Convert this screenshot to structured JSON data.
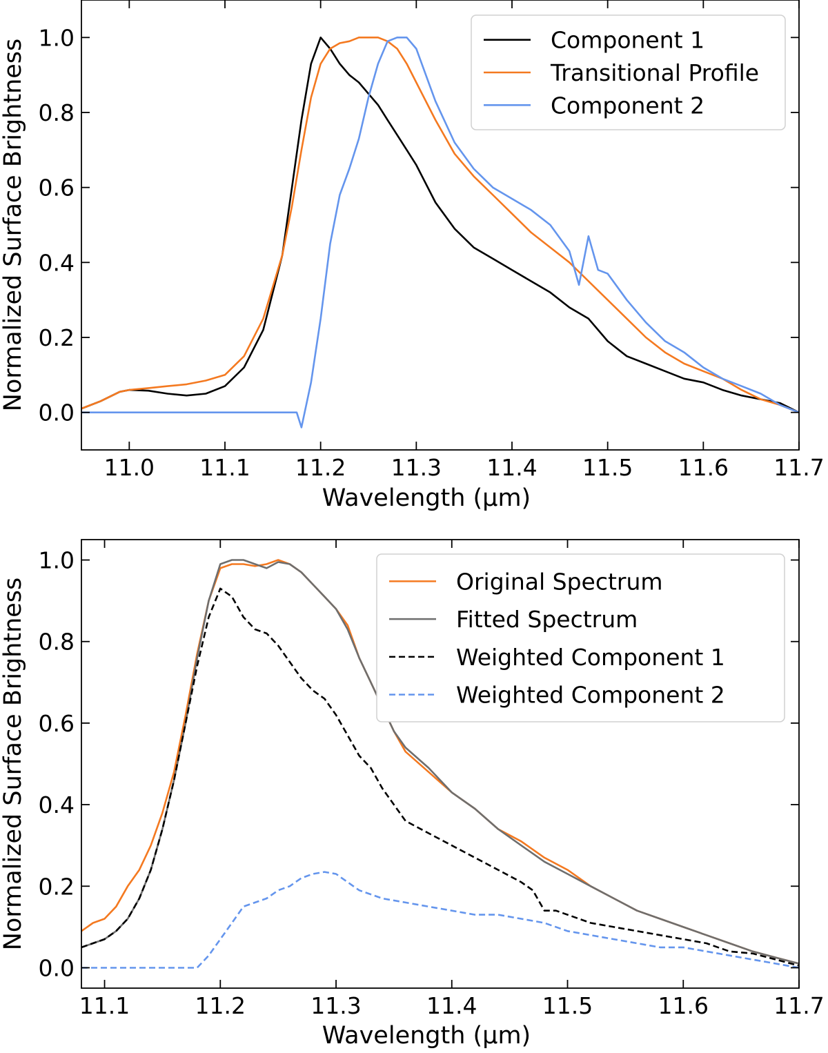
{
  "chart_data": [
    {
      "type": "line",
      "panel": "top",
      "title": "",
      "xlabel": "Wavelength (μm)",
      "ylabel": "Normalized Surface Brightness",
      "xlim": [
        10.95,
        11.7
      ],
      "ylim": [
        -0.1,
        1.1
      ],
      "xticks": [
        11.0,
        11.1,
        11.2,
        11.3,
        11.4,
        11.5,
        11.6,
        11.7
      ],
      "xtick_labels": [
        "11.0",
        "11.1",
        "11.2",
        "11.3",
        "11.4",
        "11.5",
        "11.6",
        "11.7"
      ],
      "yticks": [
        0.0,
        0.2,
        0.4,
        0.6,
        0.8,
        1.0
      ],
      "ytick_labels": [
        "0.0",
        "0.2",
        "0.4",
        "0.6",
        "0.8",
        "1.0"
      ],
      "grid": false,
      "legend_position": "top-right",
      "series": [
        {
          "name": "Component 1",
          "color": "#000000",
          "style": "solid",
          "x": [
            10.95,
            10.97,
            10.99,
            11.0,
            11.02,
            11.04,
            11.06,
            11.08,
            11.1,
            11.12,
            11.14,
            11.16,
            11.17,
            11.18,
            11.19,
            11.2,
            11.21,
            11.22,
            11.23,
            11.24,
            11.25,
            11.26,
            11.27,
            11.28,
            11.29,
            11.3,
            11.32,
            11.34,
            11.36,
            11.38,
            11.4,
            11.42,
            11.44,
            11.46,
            11.48,
            11.5,
            11.52,
            11.54,
            11.56,
            11.58,
            11.6,
            11.62,
            11.64,
            11.66,
            11.68,
            11.7
          ],
          "y": [
            0.01,
            0.03,
            0.055,
            0.06,
            0.058,
            0.05,
            0.045,
            0.05,
            0.07,
            0.12,
            0.22,
            0.42,
            0.6,
            0.78,
            0.93,
            1.0,
            0.97,
            0.93,
            0.9,
            0.88,
            0.85,
            0.82,
            0.78,
            0.74,
            0.7,
            0.66,
            0.56,
            0.49,
            0.44,
            0.41,
            0.38,
            0.35,
            0.32,
            0.28,
            0.25,
            0.19,
            0.15,
            0.13,
            0.11,
            0.09,
            0.08,
            0.06,
            0.045,
            0.035,
            0.025,
            0.0
          ]
        },
        {
          "name": "Transitional Profile",
          "color": "#f47920",
          "style": "solid",
          "x": [
            10.95,
            10.97,
            10.99,
            11.0,
            11.02,
            11.04,
            11.06,
            11.08,
            11.1,
            11.12,
            11.14,
            11.16,
            11.17,
            11.18,
            11.19,
            11.2,
            11.21,
            11.22,
            11.23,
            11.24,
            11.25,
            11.26,
            11.27,
            11.28,
            11.29,
            11.3,
            11.32,
            11.34,
            11.36,
            11.38,
            11.4,
            11.42,
            11.44,
            11.46,
            11.48,
            11.5,
            11.52,
            11.54,
            11.56,
            11.58,
            11.6,
            11.62,
            11.64,
            11.66,
            11.68,
            11.7
          ],
          "y": [
            0.01,
            0.03,
            0.055,
            0.06,
            0.065,
            0.07,
            0.075,
            0.085,
            0.1,
            0.15,
            0.25,
            0.42,
            0.55,
            0.7,
            0.84,
            0.93,
            0.97,
            0.985,
            0.99,
            1.0,
            1.0,
            1.0,
            0.99,
            0.97,
            0.93,
            0.88,
            0.78,
            0.69,
            0.63,
            0.58,
            0.53,
            0.48,
            0.44,
            0.4,
            0.35,
            0.3,
            0.25,
            0.2,
            0.16,
            0.13,
            0.11,
            0.09,
            0.06,
            0.035,
            0.02,
            0.0
          ]
        },
        {
          "name": "Component 2",
          "color": "#6495ed",
          "style": "solid",
          "x": [
            10.95,
            11.0,
            11.05,
            11.1,
            11.15,
            11.17,
            11.175,
            11.18,
            11.19,
            11.2,
            11.21,
            11.22,
            11.23,
            11.24,
            11.25,
            11.26,
            11.27,
            11.28,
            11.29,
            11.3,
            11.31,
            11.32,
            11.34,
            11.36,
            11.38,
            11.4,
            11.42,
            11.44,
            11.46,
            11.47,
            11.48,
            11.49,
            11.5,
            11.52,
            11.54,
            11.56,
            11.58,
            11.6,
            11.62,
            11.64,
            11.66,
            11.68,
            11.7
          ],
          "y": [
            0.0,
            0.0,
            0.0,
            0.0,
            0.0,
            0.0,
            0.0,
            -0.04,
            0.08,
            0.25,
            0.45,
            0.58,
            0.65,
            0.73,
            0.84,
            0.93,
            0.99,
            1.0,
            1.0,
            0.97,
            0.9,
            0.83,
            0.72,
            0.65,
            0.6,
            0.57,
            0.54,
            0.5,
            0.43,
            0.34,
            0.47,
            0.38,
            0.37,
            0.3,
            0.24,
            0.19,
            0.16,
            0.12,
            0.09,
            0.07,
            0.05,
            0.02,
            0.0
          ]
        }
      ]
    },
    {
      "type": "line",
      "panel": "bottom",
      "title": "",
      "xlabel": "Wavelength (μm)",
      "ylabel": "Normalized Surface Brightness",
      "xlim": [
        11.08,
        11.7
      ],
      "ylim": [
        -0.05,
        1.05
      ],
      "xticks": [
        11.1,
        11.2,
        11.3,
        11.4,
        11.5,
        11.6,
        11.7
      ],
      "xtick_labels": [
        "11.1",
        "11.2",
        "11.3",
        "11.4",
        "11.5",
        "11.6",
        "11.7"
      ],
      "yticks": [
        0.0,
        0.2,
        0.4,
        0.6,
        0.8,
        1.0
      ],
      "ytick_labels": [
        "0.0",
        "0.2",
        "0.4",
        "0.6",
        "0.8",
        "1.0"
      ],
      "grid": false,
      "legend_position": "top-right",
      "series": [
        {
          "name": "Original Spectrum",
          "color": "#f47920",
          "style": "solid",
          "x": [
            11.08,
            11.09,
            11.1,
            11.11,
            11.12,
            11.13,
            11.14,
            11.15,
            11.16,
            11.17,
            11.18,
            11.19,
            11.2,
            11.21,
            11.22,
            11.23,
            11.24,
            11.25,
            11.26,
            11.27,
            11.28,
            11.29,
            11.3,
            11.31,
            11.32,
            11.33,
            11.34,
            11.35,
            11.36,
            11.38,
            11.4,
            11.42,
            11.44,
            11.46,
            11.48,
            11.5,
            11.52,
            11.54,
            11.56,
            11.58,
            11.6,
            11.62,
            11.64,
            11.66,
            11.68,
            11.7
          ],
          "y": [
            0.09,
            0.11,
            0.12,
            0.15,
            0.2,
            0.24,
            0.3,
            0.38,
            0.48,
            0.62,
            0.77,
            0.9,
            0.98,
            0.99,
            0.99,
            0.985,
            0.99,
            1.0,
            0.99,
            0.97,
            0.94,
            0.91,
            0.88,
            0.84,
            0.76,
            0.7,
            0.64,
            0.58,
            0.53,
            0.48,
            0.43,
            0.39,
            0.34,
            0.31,
            0.27,
            0.24,
            0.2,
            0.17,
            0.14,
            0.12,
            0.1,
            0.08,
            0.06,
            0.04,
            0.025,
            0.01
          ]
        },
        {
          "name": "Fitted Spectrum",
          "color": "#6e6e6e",
          "style": "solid",
          "x": [
            11.08,
            11.09,
            11.1,
            11.11,
            11.12,
            11.13,
            11.14,
            11.15,
            11.16,
            11.17,
            11.18,
            11.19,
            11.2,
            11.21,
            11.22,
            11.23,
            11.24,
            11.25,
            11.26,
            11.27,
            11.28,
            11.29,
            11.3,
            11.31,
            11.32,
            11.33,
            11.34,
            11.35,
            11.36,
            11.38,
            11.4,
            11.42,
            11.44,
            11.46,
            11.48,
            11.5,
            11.52,
            11.54,
            11.56,
            11.58,
            11.6,
            11.62,
            11.64,
            11.66,
            11.68,
            11.7
          ],
          "y": [
            0.05,
            0.06,
            0.07,
            0.09,
            0.12,
            0.17,
            0.24,
            0.34,
            0.46,
            0.6,
            0.76,
            0.9,
            0.99,
            1.0,
            1.0,
            0.99,
            0.98,
            0.995,
            0.99,
            0.97,
            0.94,
            0.91,
            0.88,
            0.83,
            0.76,
            0.7,
            0.64,
            0.58,
            0.54,
            0.49,
            0.43,
            0.39,
            0.34,
            0.3,
            0.26,
            0.23,
            0.2,
            0.17,
            0.14,
            0.12,
            0.1,
            0.08,
            0.06,
            0.04,
            0.025,
            0.01
          ]
        },
        {
          "name": "Weighted Component 1",
          "color": "#000000",
          "style": "dashed",
          "x": [
            11.08,
            11.09,
            11.1,
            11.11,
            11.12,
            11.13,
            11.14,
            11.15,
            11.16,
            11.17,
            11.18,
            11.19,
            11.2,
            11.21,
            11.22,
            11.23,
            11.24,
            11.25,
            11.26,
            11.27,
            11.28,
            11.29,
            11.3,
            11.31,
            11.32,
            11.33,
            11.34,
            11.35,
            11.36,
            11.38,
            11.4,
            11.42,
            11.44,
            11.46,
            11.47,
            11.48,
            11.49,
            11.5,
            11.52,
            11.54,
            11.56,
            11.58,
            11.6,
            11.62,
            11.64,
            11.66,
            11.68,
            11.7
          ],
          "y": [
            0.05,
            0.06,
            0.07,
            0.09,
            0.12,
            0.17,
            0.24,
            0.34,
            0.46,
            0.6,
            0.74,
            0.86,
            0.93,
            0.91,
            0.86,
            0.83,
            0.82,
            0.79,
            0.75,
            0.71,
            0.68,
            0.66,
            0.62,
            0.57,
            0.52,
            0.49,
            0.44,
            0.4,
            0.36,
            0.33,
            0.3,
            0.27,
            0.24,
            0.21,
            0.19,
            0.14,
            0.14,
            0.13,
            0.11,
            0.1,
            0.09,
            0.08,
            0.07,
            0.06,
            0.04,
            0.035,
            0.02,
            0.005
          ]
        },
        {
          "name": "Weighted Component 2",
          "color": "#6495ed",
          "style": "dashed",
          "x": [
            11.08,
            11.1,
            11.12,
            11.14,
            11.16,
            11.18,
            11.19,
            11.2,
            11.21,
            11.22,
            11.23,
            11.24,
            11.25,
            11.26,
            11.27,
            11.28,
            11.29,
            11.3,
            11.31,
            11.32,
            11.34,
            11.36,
            11.38,
            11.4,
            11.42,
            11.44,
            11.46,
            11.48,
            11.5,
            11.52,
            11.54,
            11.56,
            11.58,
            11.6,
            11.62,
            11.64,
            11.66,
            11.68,
            11.7
          ],
          "y": [
            0.0,
            0.0,
            0.0,
            0.0,
            0.0,
            0.0,
            0.03,
            0.07,
            0.11,
            0.15,
            0.16,
            0.17,
            0.19,
            0.2,
            0.22,
            0.23,
            0.235,
            0.23,
            0.21,
            0.19,
            0.17,
            0.16,
            0.15,
            0.14,
            0.13,
            0.13,
            0.12,
            0.11,
            0.09,
            0.08,
            0.07,
            0.06,
            0.05,
            0.05,
            0.04,
            0.03,
            0.02,
            0.01,
            0.0
          ]
        }
      ]
    }
  ]
}
